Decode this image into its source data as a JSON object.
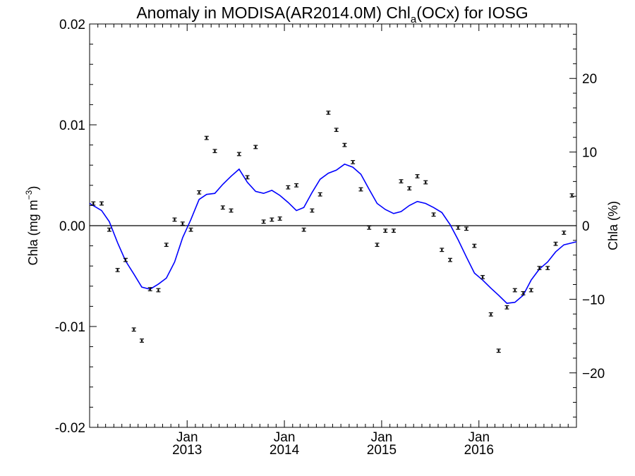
{
  "chart_data": {
    "type": "scatter",
    "title": {
      "prefix": "Anomaly in MODISA(AR2014.0M) Chl",
      "subscript": "a",
      "suffix": "(OCx) for IOSG"
    },
    "ylabel_left": {
      "text": "Chla (mg m",
      "superscript": "−3",
      "close": ")"
    },
    "ylabel_right": "Chla (%)",
    "xlim": [
      "2012-01-01",
      "2017-01-01"
    ],
    "ylim_left": [
      -0.02,
      0.02
    ],
    "ylim_right": [
      -27.4,
      27.4
    ],
    "y_ticks_left": [
      {
        "value": 0.02,
        "label": "0.02"
      },
      {
        "value": 0.01,
        "label": "0.01"
      },
      {
        "value": 0.0,
        "label": "0.00"
      },
      {
        "value": -0.01,
        "label": "-0.01"
      },
      {
        "value": -0.02,
        "label": "-0.02"
      }
    ],
    "y_ticks_right": [
      {
        "value": 20,
        "label": "20"
      },
      {
        "value": 10,
        "label": "10"
      },
      {
        "value": 0,
        "label": "0"
      },
      {
        "value": -10,
        "label": "−10"
      },
      {
        "value": -20,
        "label": "−20"
      }
    ],
    "x_ticks": [
      {
        "date": "2013-01-01",
        "month": "Jan",
        "year": "2013"
      },
      {
        "date": "2014-01-01",
        "month": "Jan",
        "year": "2014"
      },
      {
        "date": "2015-01-01",
        "month": "Jan",
        "year": "2015"
      },
      {
        "date": "2016-01-01",
        "month": "Jan",
        "year": "2016"
      }
    ],
    "zero_line": 0,
    "series": [
      {
        "kind": "monthly anomaly points with error bars",
        "color": "#000000",
        "x": [
          "2012-01-15",
          "2012-02-15",
          "2012-03-15",
          "2012-04-15",
          "2012-05-15",
          "2012-06-15",
          "2012-07-15",
          "2012-08-15",
          "2012-09-15",
          "2012-10-15",
          "2012-11-15",
          "2012-12-15",
          "2013-01-15",
          "2013-02-15",
          "2013-03-15",
          "2013-04-15",
          "2013-05-15",
          "2013-06-15",
          "2013-07-15",
          "2013-08-15",
          "2013-09-15",
          "2013-10-15",
          "2013-11-15",
          "2013-12-15",
          "2014-01-15",
          "2014-02-15",
          "2014-03-15",
          "2014-04-15",
          "2014-05-15",
          "2014-06-15",
          "2014-07-15",
          "2014-08-15",
          "2014-09-15",
          "2014-10-15",
          "2014-11-15",
          "2014-12-15",
          "2015-01-15",
          "2015-02-15",
          "2015-03-15",
          "2015-04-15",
          "2015-05-15",
          "2015-06-15",
          "2015-07-15",
          "2015-08-15",
          "2015-09-15",
          "2015-10-15",
          "2015-11-15",
          "2015-12-15",
          "2016-01-15",
          "2016-02-15",
          "2016-03-15",
          "2016-04-15",
          "2016-05-15",
          "2016-06-15",
          "2016-07-15",
          "2016-08-15",
          "2016-09-15",
          "2016-10-15",
          "2016-11-15",
          "2016-12-15"
        ],
        "y": [
          0.0022,
          0.0022,
          -0.0004,
          -0.0044,
          -0.0034,
          -0.0103,
          -0.0114,
          -0.0063,
          -0.0064,
          -0.0019,
          0.0006,
          0.0002,
          -0.0004,
          0.0033,
          0.0087,
          0.0074,
          0.0018,
          0.0015,
          0.0071,
          0.0048,
          0.0078,
          0.0004,
          0.0006,
          0.0007,
          0.0038,
          0.004,
          -0.0004,
          0.0015,
          0.0031,
          0.0112,
          0.0095,
          0.008,
          0.0063,
          0.0036,
          -0.0002,
          -0.0019,
          -0.0005,
          -0.0005,
          0.0044,
          0.0037,
          0.0049,
          0.0043,
          0.0011,
          -0.0024,
          -0.0034,
          -0.0002,
          -0.0003,
          -0.002,
          -0.0051,
          -0.0088,
          -0.0124,
          -0.0081,
          -0.0064,
          -0.0067,
          -0.0064,
          -0.0042,
          -0.0042,
          -0.0018,
          -0.0007,
          0.003
        ]
      },
      {
        "kind": "smoothed anomaly",
        "color": "#0000ff",
        "x": [
          "2012-01-01",
          "2012-02-15",
          "2012-03-15",
          "2012-04-15",
          "2012-05-15",
          "2012-06-15",
          "2012-07-15",
          "2012-08-15",
          "2012-09-15",
          "2012-10-15",
          "2012-11-15",
          "2012-12-15",
          "2013-01-15",
          "2013-02-15",
          "2013-03-15",
          "2013-04-15",
          "2013-05-15",
          "2013-06-15",
          "2013-07-15",
          "2013-08-15",
          "2013-09-15",
          "2013-10-15",
          "2013-11-15",
          "2013-12-15",
          "2014-01-15",
          "2014-02-15",
          "2014-03-15",
          "2014-04-15",
          "2014-05-15",
          "2014-06-15",
          "2014-07-15",
          "2014-08-15",
          "2014-09-15",
          "2014-10-15",
          "2014-11-15",
          "2014-12-15",
          "2015-01-15",
          "2015-02-15",
          "2015-03-15",
          "2015-04-15",
          "2015-05-15",
          "2015-06-15",
          "2015-07-15",
          "2015-08-15",
          "2015-09-15",
          "2015-10-15",
          "2015-11-15",
          "2015-12-15",
          "2016-01-15",
          "2016-02-15",
          "2016-03-15",
          "2016-04-15",
          "2016-05-15",
          "2016-06-15",
          "2016-07-15",
          "2016-08-15",
          "2016-09-15",
          "2016-10-15",
          "2016-11-15",
          "2017-01-01"
        ],
        "y": [
          0.0022,
          0.0015,
          0.0004,
          -0.0017,
          -0.0035,
          -0.0048,
          -0.0061,
          -0.0063,
          -0.0058,
          -0.0052,
          -0.0036,
          -0.0012,
          0.0006,
          0.0026,
          0.0031,
          0.0032,
          0.0041,
          0.0049,
          0.0056,
          0.0043,
          0.0034,
          0.0032,
          0.0035,
          0.003,
          0.0023,
          0.0015,
          0.0018,
          0.0033,
          0.0046,
          0.0052,
          0.0055,
          0.0061,
          0.0058,
          0.0051,
          0.0036,
          0.0022,
          0.0016,
          0.0012,
          0.0014,
          0.002,
          0.0024,
          0.0022,
          0.0018,
          0.0013,
          0.0001,
          -0.0014,
          -0.0031,
          -0.0047,
          -0.0054,
          -0.0062,
          -0.0069,
          -0.0077,
          -0.0076,
          -0.0069,
          -0.0054,
          -0.0043,
          -0.0036,
          -0.0026,
          -0.0019,
          -0.0016
        ]
      }
    ],
    "error_bar": 0.00016
  }
}
